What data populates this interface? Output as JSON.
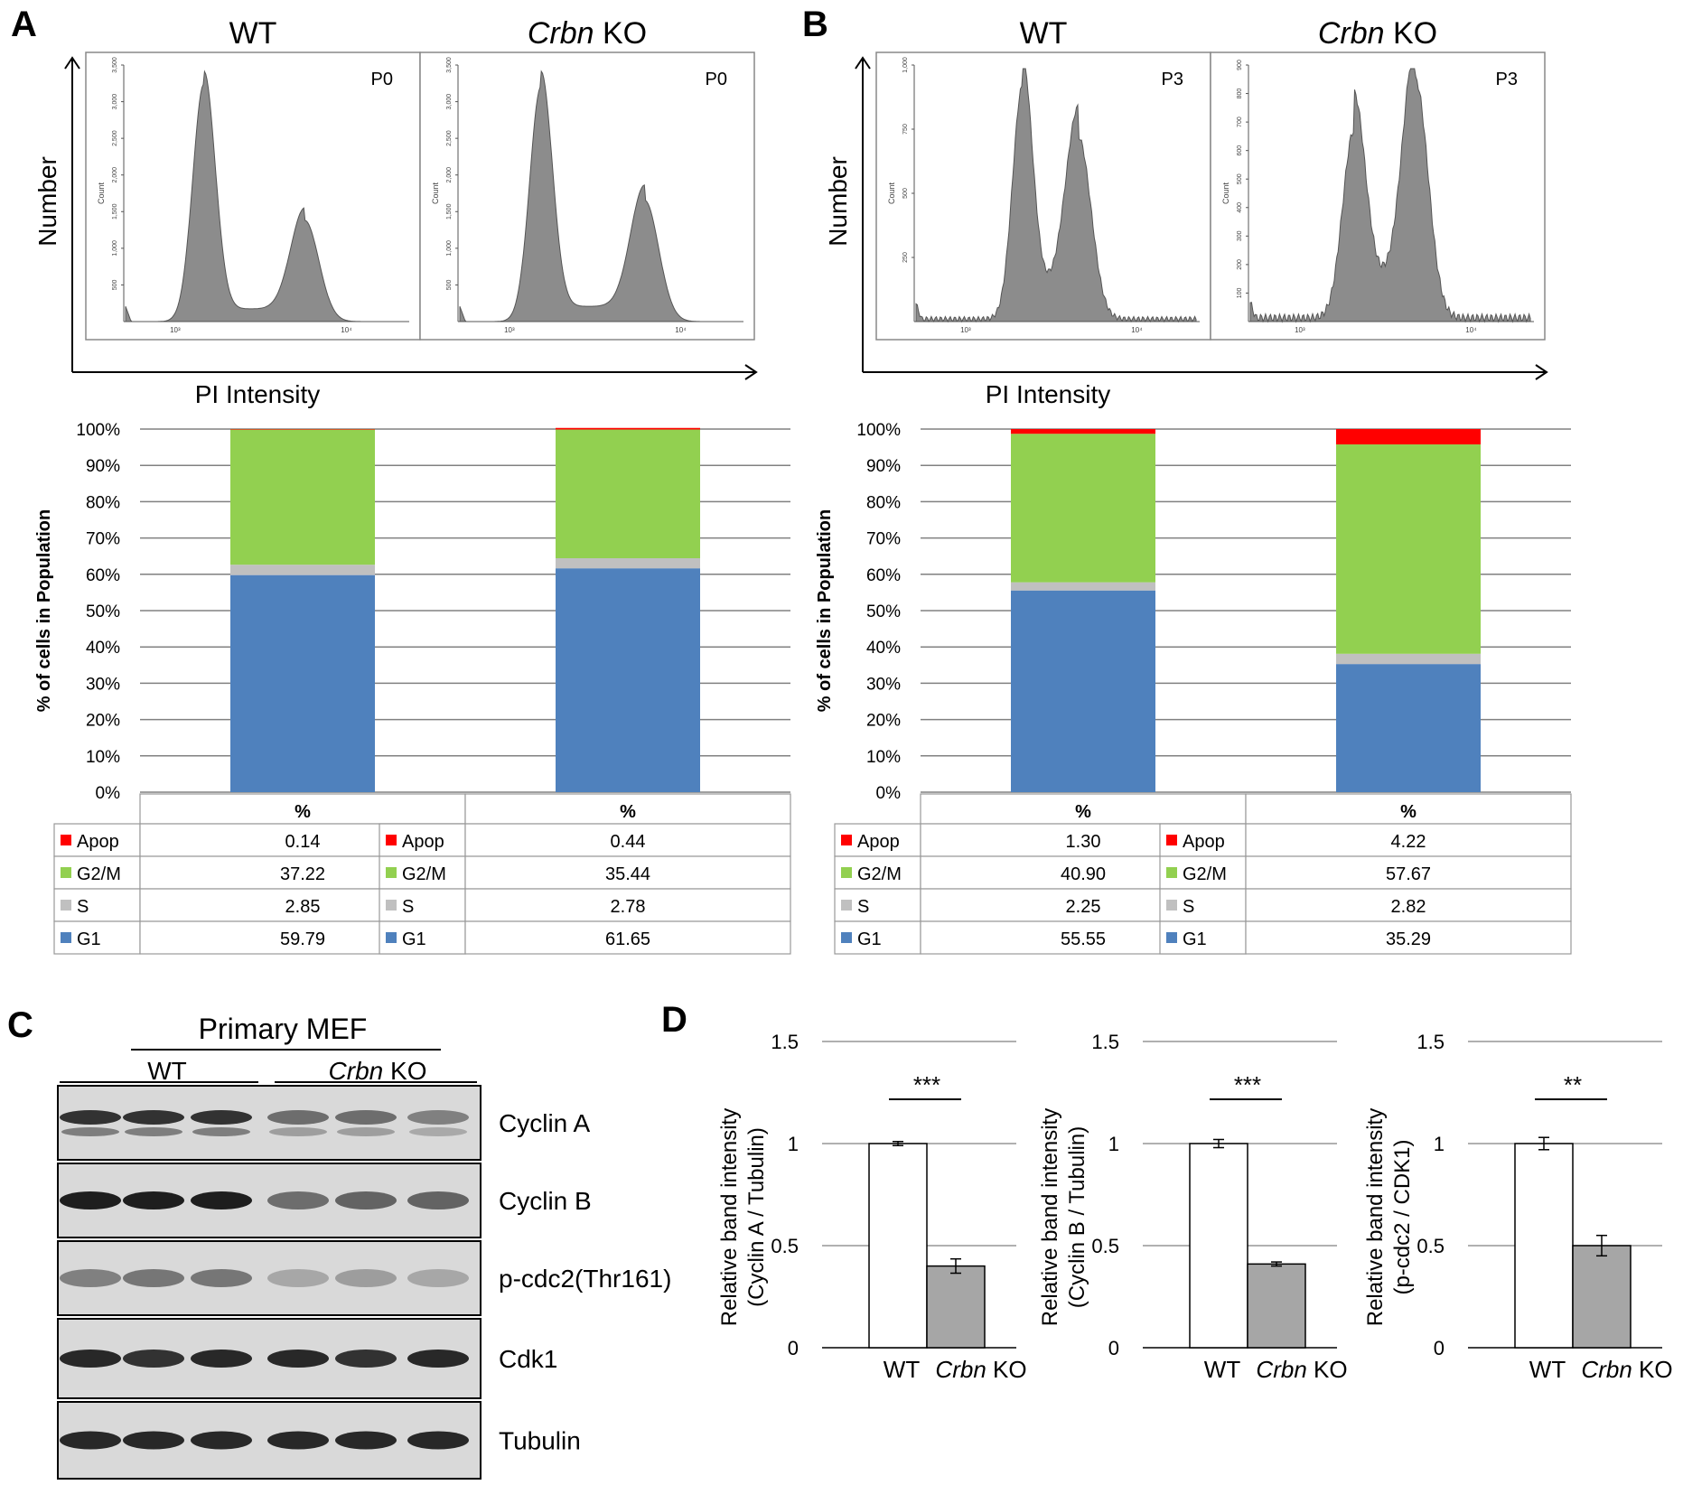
{
  "panel_letters": {
    "a": "A",
    "b": "B",
    "c": "C",
    "d": "D"
  },
  "histograms": {
    "xlabel": "PI Intensity",
    "ylabel": "Number",
    "inner_ylabel": "Count",
    "panels": [
      {
        "id": "a-wt",
        "title": "WT",
        "title_italic": "",
        "title_rest": "",
        "tag": "P0",
        "yticks": [
          "500",
          "1,000",
          "1,500",
          "2,000",
          "2,500",
          "3,000",
          "3,500"
        ],
        "xticks": [
          "10³",
          "10⁴"
        ],
        "peaks": [
          {
            "x": 0.28,
            "h": 0.94,
            "w": 0.04
          },
          {
            "x": 0.64,
            "h": 0.4,
            "w": 0.05
          }
        ],
        "s_level": 0.05,
        "noise": 0.0
      },
      {
        "id": "a-ko",
        "title": "",
        "title_italic": "Crbn",
        "title_rest": "KO",
        "tag": "P0",
        "yticks": [
          "500",
          "1,000",
          "1,500",
          "2,000",
          "2,500",
          "3,000",
          "3,500"
        ],
        "xticks": [
          "10³",
          "10⁴"
        ],
        "peaks": [
          {
            "x": 0.29,
            "h": 0.93,
            "w": 0.04
          },
          {
            "x": 0.66,
            "h": 0.48,
            "w": 0.05
          }
        ],
        "s_level": 0.06,
        "noise": 0.0
      },
      {
        "id": "b-wt",
        "title": "WT",
        "title_italic": "",
        "title_rest": "",
        "tag": "P3",
        "yticks": [
          "250",
          "500",
          "750",
          "1,000"
        ],
        "xticks": [
          "10³",
          "10⁴"
        ],
        "peaks": [
          {
            "x": 0.38,
            "h": 0.92,
            "w": 0.035
          },
          {
            "x": 0.58,
            "h": 0.72,
            "w": 0.045
          }
        ],
        "s_level": 0.12,
        "noise": 0.02
      },
      {
        "id": "b-ko",
        "title": "",
        "title_italic": "Crbn",
        "title_rest": "KO",
        "tag": "P3",
        "yticks": [
          "100",
          "200",
          "300",
          "400",
          "500",
          "600",
          "700",
          "800",
          "900"
        ],
        "xticks": [
          "10³",
          "10⁴"
        ],
        "peaks": [
          {
            "x": 0.37,
            "h": 0.74,
            "w": 0.04
          },
          {
            "x": 0.59,
            "h": 0.94,
            "w": 0.045
          }
        ],
        "s_level": 0.15,
        "noise": 0.03
      }
    ]
  },
  "chart_data": [
    {
      "type": "bar",
      "subtype": "stacked-100",
      "panel": "A",
      "ylabel": "% of cells in Population",
      "yticks": [
        "0%",
        "10%",
        "20%",
        "30%",
        "40%",
        "50%",
        "60%",
        "70%",
        "80%",
        "90%",
        "100%"
      ],
      "ylim": [
        0,
        100
      ],
      "table_header": "%",
      "categories": [
        "WT",
        "Crbn KO"
      ],
      "series": [
        {
          "name": "G1",
          "color": "#4f81bd",
          "values": [
            59.79,
            61.65
          ],
          "labels": [
            "59.79",
            "61.65"
          ]
        },
        {
          "name": "S",
          "color": "#c0c0c0",
          "values": [
            2.85,
            2.78
          ],
          "labels": [
            "2.85",
            "2.78"
          ]
        },
        {
          "name": "G2/M",
          "color": "#92d050",
          "values": [
            37.22,
            35.44
          ],
          "labels": [
            "37.22",
            "35.44"
          ]
        },
        {
          "name": "Apop",
          "color": "#ff0000",
          "values": [
            0.14,
            0.44
          ],
          "labels": [
            "0.14",
            "0.44"
          ]
        }
      ]
    },
    {
      "type": "bar",
      "subtype": "stacked-100",
      "panel": "B",
      "ylabel": "% of cells in Population",
      "yticks": [
        "0%",
        "10%",
        "20%",
        "30%",
        "40%",
        "50%",
        "60%",
        "70%",
        "80%",
        "90%",
        "100%"
      ],
      "ylim": [
        0,
        100
      ],
      "table_header": "%",
      "categories": [
        "WT",
        "Crbn KO"
      ],
      "series": [
        {
          "name": "G1",
          "color": "#4f81bd",
          "values": [
            55.55,
            35.29
          ],
          "labels": [
            "55.55",
            "35.29"
          ]
        },
        {
          "name": "S",
          "color": "#c0c0c0",
          "values": [
            2.25,
            2.82
          ],
          "labels": [
            "2.25",
            "2.82"
          ]
        },
        {
          "name": "G2/M",
          "color": "#92d050",
          "values": [
            40.9,
            57.67
          ],
          "labels": [
            "40.90",
            "57.67"
          ]
        },
        {
          "name": "Apop",
          "color": "#ff0000",
          "values": [
            1.3,
            4.22
          ],
          "labels": [
            "1.30",
            "4.22"
          ]
        }
      ]
    },
    {
      "type": "bar",
      "panel": "D",
      "ylabel_line1": "Relative band intensity",
      "ylabel_line2": "(Cyclin A / Tubulin)",
      "yticks": [
        "0",
        "0.5",
        "1",
        "1.5"
      ],
      "ylim": [
        0,
        1.5
      ],
      "categories": [
        "WT",
        "Crbn KO"
      ],
      "values": [
        1.0,
        0.4
      ],
      "errors": [
        0.01,
        0.035
      ],
      "significance": "***"
    },
    {
      "type": "bar",
      "panel": "D",
      "ylabel_line1": "Relative band intensity",
      "ylabel_line2": "(Cyclin B / Tubulin)",
      "yticks": [
        "0",
        "0.5",
        "1",
        "1.5"
      ],
      "ylim": [
        0,
        1.5
      ],
      "categories": [
        "WT",
        "Crbn KO"
      ],
      "values": [
        1.0,
        0.41
      ],
      "errors": [
        0.02,
        0.01
      ],
      "significance": "***"
    },
    {
      "type": "bar",
      "panel": "D",
      "ylabel_line1": "Relative band intensity",
      "ylabel_line2": "(p-cdc2 / CDK1)",
      "yticks": [
        "0",
        "0.5",
        "1",
        "1.5"
      ],
      "ylim": [
        0,
        1.5
      ],
      "categories": [
        "WT",
        "Crbn KO"
      ],
      "values": [
        1.0,
        0.5
      ],
      "errors": [
        0.03,
        0.05
      ],
      "significance": "**"
    }
  ],
  "western": {
    "title": "Primary MEF",
    "group_wt": "WT",
    "group_ko_italic": "Crbn",
    "group_ko_rest": "KO",
    "rows": [
      {
        "label": "Cyclin A",
        "intensity": [
          0.85,
          0.85,
          0.85,
          0.55,
          0.55,
          0.45
        ],
        "double": true
      },
      {
        "label": "Cyclin B",
        "intensity": [
          0.95,
          0.95,
          0.95,
          0.55,
          0.6,
          0.6
        ],
        "double": false
      },
      {
        "label": "p-cdc2(Thr161)",
        "intensity": [
          0.45,
          0.5,
          0.5,
          0.25,
          0.3,
          0.25
        ],
        "double": false
      },
      {
        "label": "Cdk1",
        "intensity": [
          0.9,
          0.85,
          0.9,
          0.9,
          0.85,
          0.9
        ],
        "double": false
      },
      {
        "label": "Tubulin",
        "intensity": [
          0.9,
          0.9,
          0.9,
          0.9,
          0.9,
          0.9
        ],
        "double": false
      }
    ]
  },
  "colors": {
    "hist_fill": "#8c8c8c",
    "axis": "#000000",
    "grid": "#808080",
    "blot_bg": "#d9d9d9",
    "bar_ko": "#a6a6a6"
  }
}
